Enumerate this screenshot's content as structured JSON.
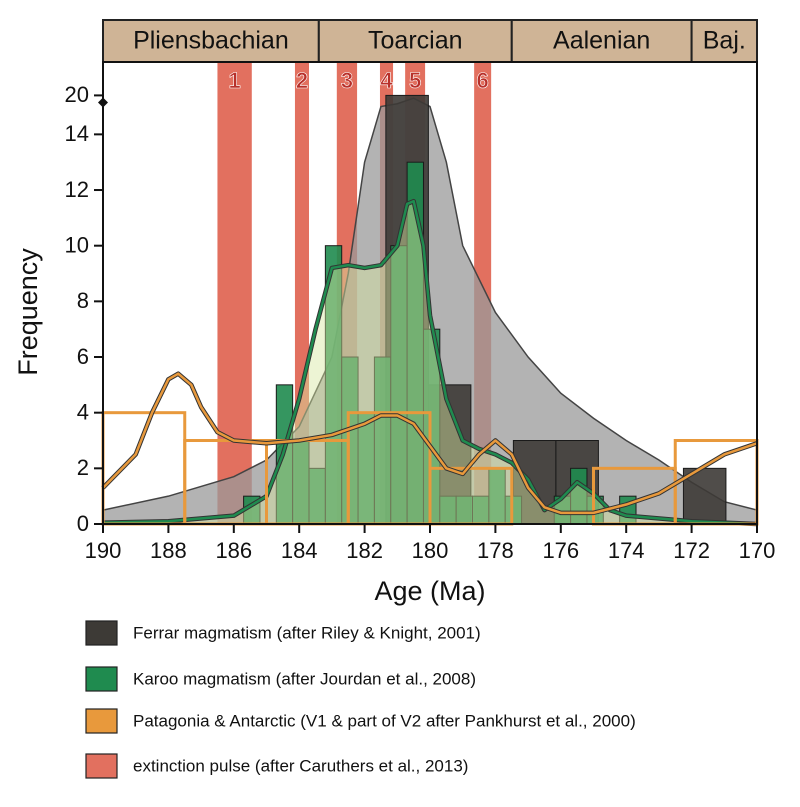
{
  "chart_data": {
    "type": "histogram",
    "xlabel": "Age (Ma)",
    "ylabel": "Frequency",
    "xlim": [
      190,
      170
    ],
    "xticks": [
      190,
      188,
      186,
      184,
      182,
      180,
      178,
      176,
      174,
      172,
      170
    ],
    "ylim": [
      0,
      21.2
    ],
    "y_break": [
      15,
      19.6
    ],
    "yticks": [
      0,
      2,
      4,
      6,
      8,
      10,
      12,
      14,
      20
    ],
    "stages": [
      {
        "name": "Pliensbachian",
        "start": 190,
        "end": 183.4
      },
      {
        "name": "Toarcian",
        "start": 183.4,
        "end": 177.5
      },
      {
        "name": "Aalenian",
        "start": 177.5,
        "end": 172
      },
      {
        "name": "Baj.",
        "start": 172,
        "end": 170
      }
    ],
    "stage_color": "#cfb496",
    "extinction_pulses": [
      {
        "label": "1",
        "start": 186.5,
        "end": 185.45
      },
      {
        "label": "2",
        "start": 184.13,
        "end": 183.7
      },
      {
        "label": "3",
        "start": 182.85,
        "end": 182.23
      },
      {
        "label": "4",
        "start": 181.53,
        "end": 181.13
      },
      {
        "label": "5",
        "start": 180.76,
        "end": 180.15
      },
      {
        "label": "6",
        "start": 178.65,
        "end": 178.13
      }
    ],
    "pulse_legend": {
      "name": "extinction pulse (after Caruthers et al., 2013)",
      "color": "#e2705f"
    },
    "histograms": [
      {
        "name": "Ferrar magmatism (after Riley & Knight, 2001)",
        "color": "#3d3a36",
        "style": "filled",
        "bins": [
          181.35,
          180.05,
          178.75,
          177.45,
          176.15,
          174.85,
          173.55,
          172.25,
          170.95
        ],
        "counts": [
          20,
          5,
          0,
          3,
          3,
          0,
          0,
          2
        ],
        "kde": {
          "style": "area",
          "color": "#9a9a9a",
          "x": [
            190,
            188,
            186,
            185,
            184,
            183,
            182.5,
            182,
            181.5,
            181,
            180.5,
            180,
            179.5,
            179,
            178,
            177,
            176,
            175,
            174,
            173,
            172,
            171,
            170
          ],
          "values": [
            0.5,
            1,
            1.7,
            2.3,
            3.5,
            6,
            9,
            13,
            17,
            19.7,
            19.9,
            17,
            13,
            10,
            7.6,
            6,
            4.7,
            3.8,
            3,
            2.3,
            1.5,
            0.8,
            0.5
          ]
        }
      },
      {
        "name": "Karoo magmatism (after Jourdan et al., 2008)",
        "color": "#1f8b4f",
        "style": "filled",
        "bins": [
          185.7,
          185.2,
          184.7,
          184.2,
          183.7,
          183.2,
          182.7,
          182.2,
          181.7,
          181.2,
          180.7,
          180.2,
          179.7,
          179.2,
          178.7,
          178.2,
          177.7,
          177.2,
          176.7,
          176.2,
          175.7,
          175.2,
          174.7,
          174.2,
          173.7
        ],
        "counts": [
          1,
          0,
          5,
          3,
          2,
          10,
          6,
          4,
          6,
          10,
          13,
          7,
          1,
          1,
          1,
          2,
          1,
          0,
          0,
          1,
          2,
          1,
          0,
          1
        ],
        "kde": {
          "style": "line",
          "color": "#1f8b4f",
          "x": [
            190,
            188,
            186,
            185,
            184.5,
            184,
            183.5,
            183,
            182.5,
            182,
            181.5,
            181,
            180.7,
            180.5,
            180.2,
            180,
            179.5,
            179,
            178.5,
            178,
            177.5,
            177,
            176.5,
            176,
            175.5,
            175,
            174.5,
            174,
            172,
            170
          ],
          "values": [
            0.05,
            0.1,
            0.3,
            1,
            2.5,
            4.5,
            7,
            9.2,
            9.3,
            9.2,
            9.3,
            10,
            11.5,
            11.6,
            10,
            7.5,
            4.5,
            3,
            2.7,
            2.5,
            2.2,
            1.6,
            0.5,
            0.9,
            1.5,
            1.1,
            0.5,
            0.3,
            0.1,
            0
          ]
        }
      },
      {
        "name": "Patagonia & Antarctic (V1 & part of V2 after Pankhurst et al., 2000)",
        "color": "#e8993c",
        "style": "outline",
        "bins": [
          190,
          187.5,
          185,
          182.5,
          180,
          177.5,
          175,
          172.5,
          170
        ],
        "counts": [
          4,
          3,
          3,
          4,
          2,
          0,
          2,
          3
        ],
        "kde": {
          "style": "line",
          "color": "#e8993c",
          "x": [
            190,
            189,
            188.5,
            188,
            187.7,
            187.3,
            187,
            186.5,
            186,
            185,
            184,
            183,
            182,
            181.5,
            181,
            180.5,
            180,
            179.5,
            179,
            178.5,
            178,
            177.5,
            177,
            176.5,
            176,
            175,
            174,
            173,
            172,
            171,
            170
          ],
          "values": [
            1.3,
            2.5,
            4,
            5.2,
            5.4,
            5,
            4.2,
            3.3,
            3,
            2.9,
            3,
            3.2,
            3.6,
            3.9,
            3.9,
            3.6,
            2.8,
            2,
            1.8,
            2.5,
            3,
            2.5,
            1.3,
            0.6,
            0.4,
            0.4,
            0.7,
            1.1,
            1.8,
            2.5,
            2.9
          ]
        }
      }
    ]
  }
}
